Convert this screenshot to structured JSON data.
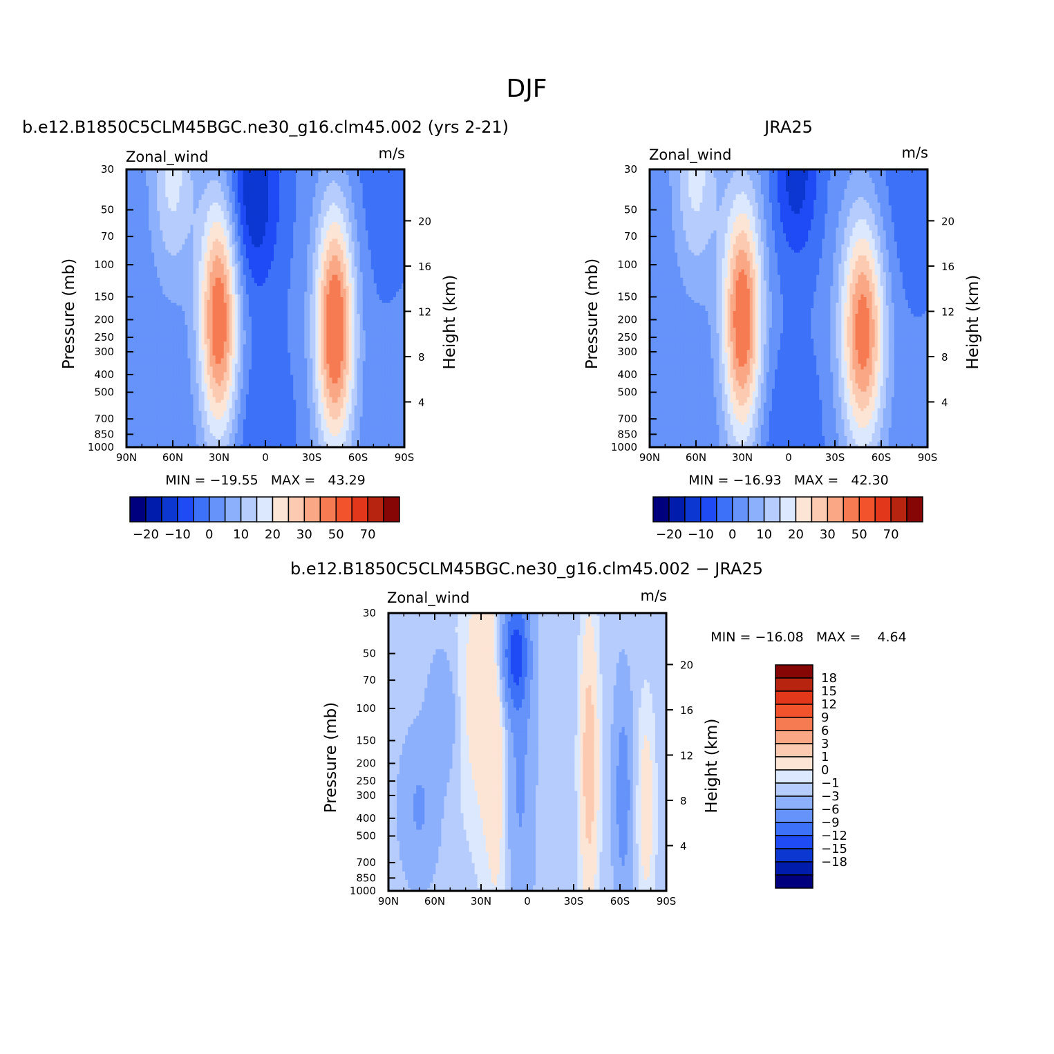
{
  "figure_title": "DJF",
  "chart_data": [
    {
      "type": "heatmap",
      "id": "model",
      "title": "b.e12.B1850C5CLM45BGC.ne30_g16.clm45.002 (yrs 2-21)",
      "variable": "Zonal_wind",
      "units": "m/s",
      "xlabel": "",
      "ylabel": "Pressure (mb)",
      "ylabel_right": "Height (km)",
      "x_ticks": [
        "90N",
        "60N",
        "30N",
        "0",
        "30S",
        "60S",
        "90S"
      ],
      "y_ticks": [
        "30",
        "50",
        "70",
        "100",
        "150",
        "200",
        "250",
        "300",
        "400",
        "500",
        "700",
        "850",
        "1000"
      ],
      "y_ticks_right": [
        "20",
        "16",
        "12",
        "8",
        "4"
      ],
      "stats": "MIN = −19.55   MAX =   43.29",
      "min": -19.55,
      "max": 43.29,
      "fields": {
        "base": -4,
        "blobs": [
          {
            "lat": 30,
            "p": 200,
            "amp": 40,
            "slat": 9,
            "sp": 1.1
          },
          {
            "lat": 60,
            "p": 30,
            "amp": 16,
            "slat": 10,
            "sp": 1.0
          },
          {
            "lat": -45,
            "p": 220,
            "amp": 42,
            "slat": 9,
            "sp": 1.1
          },
          {
            "lat": 8,
            "p": 40,
            "amp": -16,
            "slat": 12,
            "sp": 0.9
          },
          {
            "lat": 5,
            "p": 900,
            "amp": -6,
            "slat": 15,
            "sp": 0.8
          },
          {
            "lat": -70,
            "p": 40,
            "amp": -3,
            "slat": 20,
            "sp": 1.0
          }
        ]
      }
    },
    {
      "type": "heatmap",
      "id": "obs",
      "title": "JRA25",
      "variable": "Zonal_wind",
      "units": "m/s",
      "xlabel": "",
      "ylabel": "Pressure (mb)",
      "ylabel_right": "Height (km)",
      "x_ticks": [
        "90N",
        "60N",
        "30N",
        "0",
        "30S",
        "60S",
        "90S"
      ],
      "y_ticks": [
        "30",
        "50",
        "70",
        "100",
        "150",
        "200",
        "250",
        "300",
        "400",
        "500",
        "700",
        "850",
        "1000"
      ],
      "y_ticks_right": [
        "20",
        "16",
        "12",
        "8",
        "4"
      ],
      "stats": "MIN = −16.93   MAX =   42.30",
      "min": -16.93,
      "max": 42.3,
      "fields": {
        "base": -4,
        "blobs": [
          {
            "lat": 30,
            "p": 200,
            "amp": 40,
            "slat": 9,
            "sp": 1.1
          },
          {
            "lat": 60,
            "p": 30,
            "amp": 16,
            "slat": 10,
            "sp": 1.0
          },
          {
            "lat": -48,
            "p": 230,
            "amp": 38,
            "slat": 10,
            "sp": 1.05
          },
          {
            "lat": -5,
            "p": 30,
            "amp": -14,
            "slat": 10,
            "sp": 0.8
          },
          {
            "lat": 0,
            "p": 900,
            "amp": -6,
            "slat": 14,
            "sp": 0.8
          },
          {
            "lat": -75,
            "p": 40,
            "amp": -4,
            "slat": 20,
            "sp": 1.0
          }
        ]
      }
    },
    {
      "type": "heatmap",
      "id": "diff",
      "title": "b.e12.B1850C5CLM45BGC.ne30_g16.clm45.002 − JRA25",
      "variable": "Zonal_wind",
      "units": "m/s",
      "xlabel": "",
      "ylabel": "Pressure (mb)",
      "ylabel_right": "Height (km)",
      "x_ticks": [
        "90N",
        "60N",
        "30N",
        "0",
        "30S",
        "60S",
        "90S"
      ],
      "y_ticks": [
        "30",
        "50",
        "70",
        "100",
        "150",
        "200",
        "250",
        "300",
        "400",
        "500",
        "700",
        "850",
        "1000"
      ],
      "y_ticks_right": [
        "20",
        "16",
        "12",
        "8",
        "4"
      ],
      "stats": "MIN = −16.08   MAX =    4.64",
      "min": -16.08,
      "max": 4.64,
      "fields": {
        "base": -0.5,
        "blobs": [
          {
            "lat": 8,
            "p": 50,
            "amp": -9,
            "slat": 6,
            "sp": 0.5
          },
          {
            "lat": 5,
            "p": 200,
            "amp": -3,
            "slat": 6,
            "sp": 1.5
          },
          {
            "lat": -40,
            "p": 200,
            "amp": 5,
            "slat": 4,
            "sp": 1.2
          },
          {
            "lat": -62,
            "p": 300,
            "amp": -4,
            "slat": 4,
            "sp": 0.9
          },
          {
            "lat": -77,
            "p": 350,
            "amp": 2.5,
            "slat": 4,
            "sp": 0.9
          },
          {
            "lat": 30,
            "p": 80,
            "amp": 2.5,
            "slat": 10,
            "sp": 1.2
          },
          {
            "lat": 55,
            "p": 110,
            "amp": -2.5,
            "slat": 6,
            "sp": 0.5
          },
          {
            "lat": 70,
            "p": 350,
            "amp": -2.8,
            "slat": 8,
            "sp": 0.6
          },
          {
            "lat": 20,
            "p": 300,
            "amp": 1.8,
            "slat": 6,
            "sp": 1.5
          }
        ]
      }
    }
  ],
  "colorbar_main": {
    "labels": [
      "−20",
      "−10",
      "0",
      "10",
      "20",
      "30",
      "50",
      "70"
    ],
    "levels": [
      -25,
      -20,
      -15,
      -10,
      -5,
      0,
      5,
      10,
      15,
      20,
      25,
      30,
      40,
      50,
      60,
      70
    ],
    "colors": [
      "#00007e",
      "#001cac",
      "#0d37d1",
      "#1f4bf5",
      "#3d72f8",
      "#6593fa",
      "#8db0fc",
      "#b6ccfd",
      "#dbe8fe",
      "#fde5d6",
      "#fbcab1",
      "#f9a784",
      "#f67a52",
      "#f3532c",
      "#e2371a",
      "#b72511",
      "#860606"
    ]
  },
  "colorbar_diff": {
    "labels": [
      "18",
      "15",
      "12",
      "9",
      "6",
      "3",
      "1",
      "0",
      "−1",
      "−3",
      "−6",
      "−9",
      "−12",
      "−15",
      "−18"
    ],
    "levels": [
      -18,
      -15,
      -12,
      -9,
      -6,
      -3,
      -1,
      0,
      1,
      3,
      6,
      9,
      12,
      15,
      18
    ],
    "colors": [
      "#00007e",
      "#001cac",
      "#0d37d1",
      "#1f4bf5",
      "#3d72f8",
      "#6593fa",
      "#8db0fc",
      "#b6ccfd",
      "#dbe8fe",
      "#fde5d6",
      "#fbcab1",
      "#f9a784",
      "#f67a52",
      "#f3532c",
      "#e2371a",
      "#b72511",
      "#860606"
    ]
  }
}
